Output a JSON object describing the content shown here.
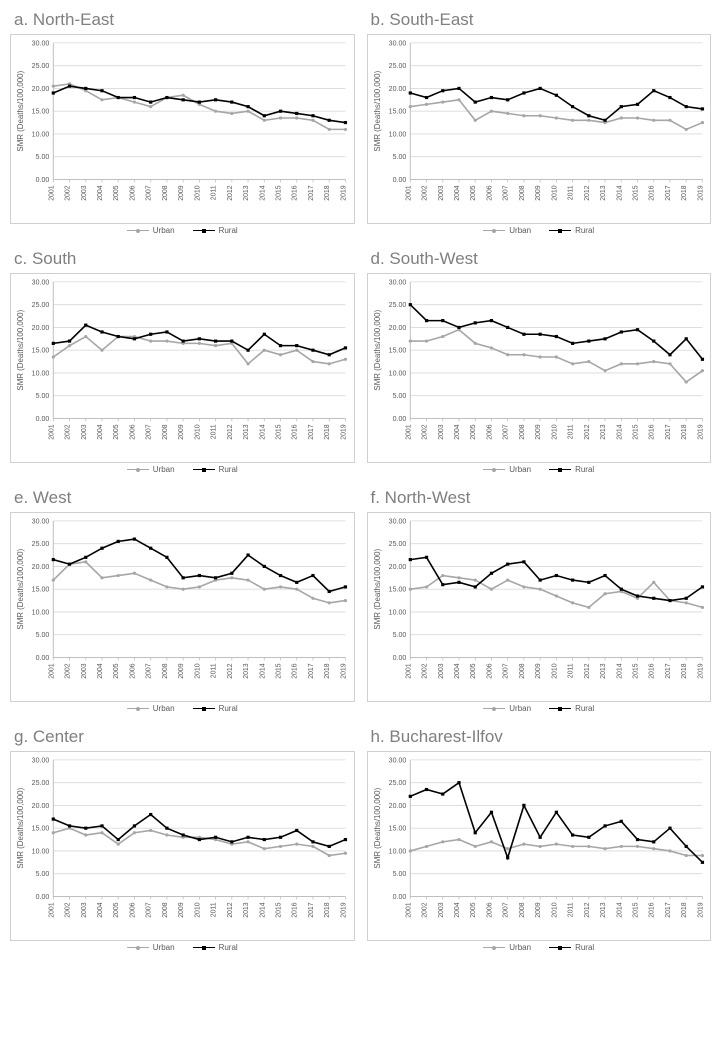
{
  "global": {
    "ylabel": "SMR (Deaths/100,000)",
    "ylim": [
      0,
      30
    ],
    "ytick_step": 5,
    "ytick_labels": [
      "0.00",
      "5.00",
      "10.00",
      "15.00",
      "20.00",
      "25.00",
      "30.00"
    ],
    "years": [
      "2001",
      "2002",
      "2003",
      "2004",
      "2005",
      "2006",
      "2007",
      "2008",
      "2009",
      "2010",
      "2011",
      "2012",
      "2013",
      "2014",
      "2015",
      "2016",
      "2017",
      "2018",
      "2019"
    ],
    "series_names": {
      "urban": "Urban",
      "rural": "Rural"
    },
    "colors": {
      "urban_line": "#a6a6a6",
      "urban_marker": "#a6a6a6",
      "rural_line": "#000000",
      "rural_marker": "#000000",
      "grid": "#d9d9d9",
      "axis": "#bfbfbf",
      "tick_text": "#595959",
      "title_text": "#7f7f7f",
      "background": "#ffffff",
      "border": "#d0d0d0"
    },
    "line_width": 1.6,
    "marker_size": 3.2,
    "label_fontsize": 8,
    "tick_fontsize": 7,
    "title_fontsize": 17
  },
  "panels": [
    {
      "id": "a",
      "title": "a. North-East",
      "urban": [
        20.5,
        21.0,
        19.5,
        17.5,
        18.0,
        17.0,
        16.0,
        18.0,
        18.5,
        16.5,
        15.0,
        14.5,
        15.0,
        13.0,
        13.5,
        13.5,
        13.0,
        11.0,
        11.0
      ],
      "rural": [
        19.0,
        20.5,
        20.0,
        19.5,
        18.0,
        18.0,
        17.0,
        18.0,
        17.5,
        17.0,
        17.5,
        17.0,
        16.0,
        14.0,
        15.0,
        14.5,
        14.0,
        13.0,
        12.5
      ]
    },
    {
      "id": "b",
      "title": "b. South-East",
      "urban": [
        16.0,
        16.5,
        17.0,
        17.5,
        13.0,
        15.0,
        14.5,
        14.0,
        14.0,
        13.5,
        13.0,
        13.0,
        12.5,
        13.5,
        13.5,
        13.0,
        13.0,
        11.0,
        12.5
      ],
      "rural": [
        19.0,
        18.0,
        19.5,
        20.0,
        17.0,
        18.0,
        17.5,
        19.0,
        20.0,
        18.5,
        16.0,
        14.0,
        13.0,
        16.0,
        16.5,
        19.5,
        18.0,
        16.0,
        15.5
      ]
    },
    {
      "id": "c",
      "title": "c. South",
      "urban": [
        13.5,
        16.0,
        18.0,
        15.0,
        18.0,
        18.0,
        17.0,
        17.0,
        16.5,
        16.5,
        16.0,
        16.5,
        12.0,
        15.0,
        14.0,
        15.0,
        12.5,
        12.0,
        13.0
      ],
      "rural": [
        16.5,
        17.0,
        20.5,
        19.0,
        18.0,
        17.5,
        18.5,
        19.0,
        17.0,
        17.5,
        17.0,
        17.0,
        15.0,
        18.5,
        16.0,
        16.0,
        15.0,
        14.0,
        15.5
      ]
    },
    {
      "id": "d",
      "title": "d. South-West",
      "urban": [
        17.0,
        17.0,
        18.0,
        19.5,
        16.5,
        15.5,
        14.0,
        14.0,
        13.5,
        13.5,
        12.0,
        12.5,
        10.5,
        12.0,
        12.0,
        12.5,
        12.0,
        8.0,
        10.5
      ],
      "rural": [
        25.0,
        21.5,
        21.5,
        20.0,
        21.0,
        21.5,
        20.0,
        18.5,
        18.5,
        18.0,
        16.5,
        17.0,
        17.5,
        19.0,
        19.5,
        17.0,
        14.0,
        17.5,
        13.0
      ]
    },
    {
      "id": "e",
      "title": "e. West",
      "urban": [
        17.0,
        20.5,
        21.0,
        17.5,
        18.0,
        18.5,
        17.0,
        15.5,
        15.0,
        15.5,
        17.0,
        17.5,
        17.0,
        15.0,
        15.5,
        15.0,
        13.0,
        12.0,
        12.5
      ],
      "rural": [
        21.5,
        20.5,
        22.0,
        24.0,
        25.5,
        26.0,
        24.0,
        22.0,
        17.5,
        18.0,
        17.5,
        18.5,
        22.5,
        20.0,
        18.0,
        16.5,
        18.0,
        14.5,
        15.5
      ]
    },
    {
      "id": "f",
      "title": "f. North-West",
      "urban": [
        15.0,
        15.5,
        18.0,
        17.5,
        17.0,
        15.0,
        17.0,
        15.5,
        15.0,
        13.5,
        12.0,
        11.0,
        14.0,
        14.5,
        13.0,
        16.5,
        12.5,
        12.0,
        11.0
      ],
      "rural": [
        21.5,
        22.0,
        16.0,
        16.5,
        15.5,
        18.5,
        20.5,
        21.0,
        17.0,
        18.0,
        17.0,
        16.5,
        18.0,
        15.0,
        13.5,
        13.0,
        12.5,
        13.0,
        15.5
      ]
    },
    {
      "id": "g",
      "title": "g. Center",
      "urban": [
        14.0,
        15.0,
        13.5,
        14.0,
        11.5,
        14.0,
        14.5,
        13.5,
        13.0,
        13.0,
        12.5,
        11.5,
        12.0,
        10.5,
        11.0,
        11.5,
        11.0,
        9.0,
        9.5
      ],
      "rural": [
        17.0,
        15.5,
        15.0,
        15.5,
        12.5,
        15.5,
        18.0,
        15.0,
        13.5,
        12.5,
        13.0,
        12.0,
        13.0,
        12.5,
        13.0,
        14.5,
        12.0,
        11.0,
        12.5
      ]
    },
    {
      "id": "h",
      "title": "h. Bucharest-Ilfov",
      "urban": [
        10.0,
        11.0,
        12.0,
        12.5,
        11.0,
        12.0,
        10.5,
        11.5,
        11.0,
        11.5,
        11.0,
        11.0,
        10.5,
        11.0,
        11.0,
        10.5,
        10.0,
        9.0,
        9.0
      ],
      "rural": [
        22.0,
        23.5,
        22.5,
        25.0,
        14.0,
        18.5,
        8.5,
        20.0,
        13.0,
        18.5,
        13.5,
        13.0,
        15.5,
        16.5,
        12.5,
        12.0,
        15.0,
        11.0,
        7.5
      ]
    }
  ]
}
